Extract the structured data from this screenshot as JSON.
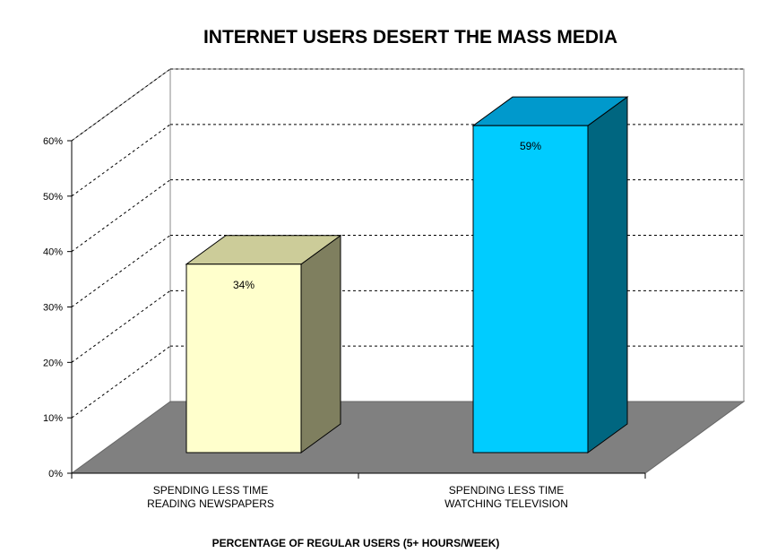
{
  "chart_data": {
    "type": "bar",
    "title": "INTERNET USERS DESERT THE MASS MEDIA",
    "xlabel": "PERCENTAGE OF REGULAR USERS (5+ HOURS/WEEK)",
    "ylabel": "",
    "ylim": [
      0,
      60
    ],
    "yticks": [
      "0%",
      "10%",
      "20%",
      "30%",
      "40%",
      "50%",
      "60%"
    ],
    "categories": [
      [
        "SPENDING LESS TIME",
        "READING NEWSPAPERS"
      ],
      [
        "SPENDING LESS TIME",
        "WATCHING TELEVISION"
      ]
    ],
    "values": [
      34,
      59
    ],
    "data_labels": [
      "34%",
      "59%"
    ],
    "grid": true,
    "style": "3d",
    "colors": {
      "bar1_front": "#FFFFCC",
      "bar1_top": "#CCCC99",
      "bar1_side": "#7F7F5F",
      "bar2_front": "#00CCFF",
      "bar2_top": "#0099CC",
      "bar2_side": "#006680",
      "floor": "#808080"
    }
  }
}
